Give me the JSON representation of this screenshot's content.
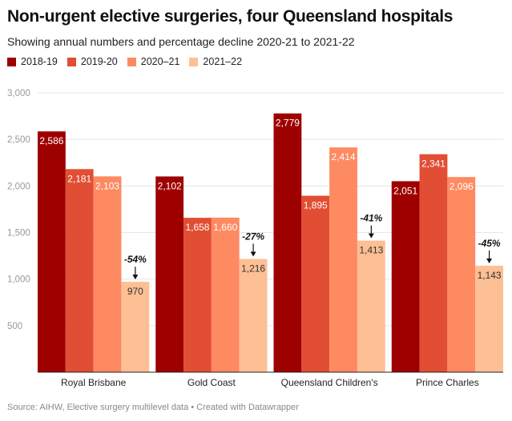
{
  "title": "Non-urgent elective surgeries, four Queensland hospitals",
  "subtitle": "Showing annual numbers and percentage decline 2020-21 to 2021-22",
  "source": "Source: AIHW, Elective surgery multilevel data • Created with Datawrapper",
  "chart_data": {
    "type": "bar",
    "title": "Non-urgent elective surgeries, four Queensland hospitals",
    "xlabel": "",
    "ylabel": "",
    "ylim": [
      0,
      3000
    ],
    "yticks": [
      500,
      1000,
      1500,
      2000,
      2500,
      3000
    ],
    "ytick_labels": [
      "500",
      "1,000",
      "1,500",
      "2,000",
      "2,500",
      "3,000"
    ],
    "grid": true,
    "legend_placement": "top-left",
    "categories": [
      "Royal Brisbane",
      "Gold Coast",
      "Queensland Children's",
      "Prince Charles"
    ],
    "series": [
      {
        "name": "2018-19",
        "color": "#9e0000",
        "values": [
          2586,
          2102,
          2779,
          2051
        ],
        "labels": [
          "2,586",
          "2,102",
          "2,779",
          "2,051"
        ]
      },
      {
        "name": "2019-20",
        "color": "#e14e33",
        "values": [
          2181,
          1658,
          1895,
          2341
        ],
        "labels": [
          "2,181",
          "1,658",
          "1,895",
          "2,341"
        ]
      },
      {
        "name": "2020–21",
        "color": "#fe8a62",
        "values": [
          2103,
          1660,
          2414,
          2096
        ],
        "labels": [
          "2,103",
          "1,660",
          "2,414",
          "2,096"
        ]
      },
      {
        "name": "2021–22",
        "color": "#fdbf94",
        "values": [
          970,
          1216,
          1413,
          1143
        ],
        "labels": [
          "970",
          "1,216",
          "1,413",
          "1,143"
        ]
      }
    ],
    "annotations": [
      "-54%",
      "-27%",
      "-41%",
      "-45%"
    ]
  }
}
